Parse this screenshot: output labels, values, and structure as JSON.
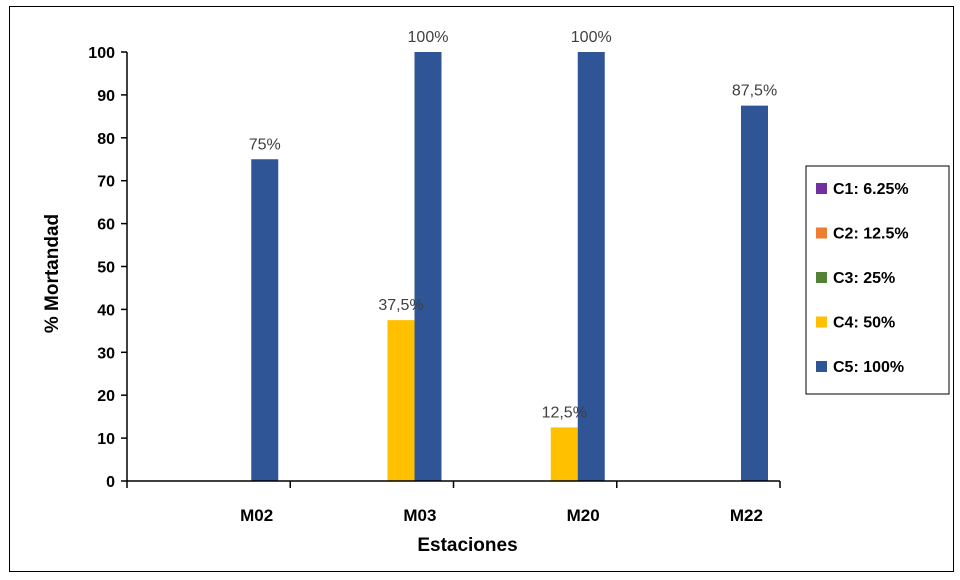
{
  "chart_data": {
    "type": "bar",
    "title": "",
    "xlabel": "Estaciones",
    "ylabel": "% Mortandad",
    "ylim": [
      0,
      100
    ],
    "yticks": [
      "0",
      "10",
      "20",
      "30",
      "40",
      "50",
      "60",
      "70",
      "80",
      "90",
      "100"
    ],
    "categories": [
      "M02",
      "M03",
      "M20",
      "M22"
    ],
    "legend_position": "right",
    "grid": false,
    "series": [
      {
        "name": "C1: 6.25%",
        "color": "#7030A0",
        "values": [
          0,
          0,
          0,
          0
        ],
        "labels": [
          "",
          "",
          "",
          ""
        ]
      },
      {
        "name": "C2: 12.5%",
        "color": "#ED7D31",
        "values": [
          0,
          0,
          0,
          0
        ],
        "labels": [
          "",
          "",
          "",
          ""
        ]
      },
      {
        "name": "C3: 25%",
        "color": "#548235",
        "values": [
          0,
          0,
          0,
          0
        ],
        "labels": [
          "",
          "",
          "",
          ""
        ]
      },
      {
        "name": "C4: 50%",
        "color": "#FFC000",
        "values": [
          0,
          37.5,
          12.5,
          0
        ],
        "labels": [
          "",
          "37,5%",
          "12,5%",
          ""
        ]
      },
      {
        "name": "C5: 100%",
        "color": "#2F5597",
        "values": [
          75,
          100,
          100,
          87.5
        ],
        "labels": [
          "75%",
          "100%",
          "100%",
          "87,5%"
        ]
      }
    ]
  }
}
